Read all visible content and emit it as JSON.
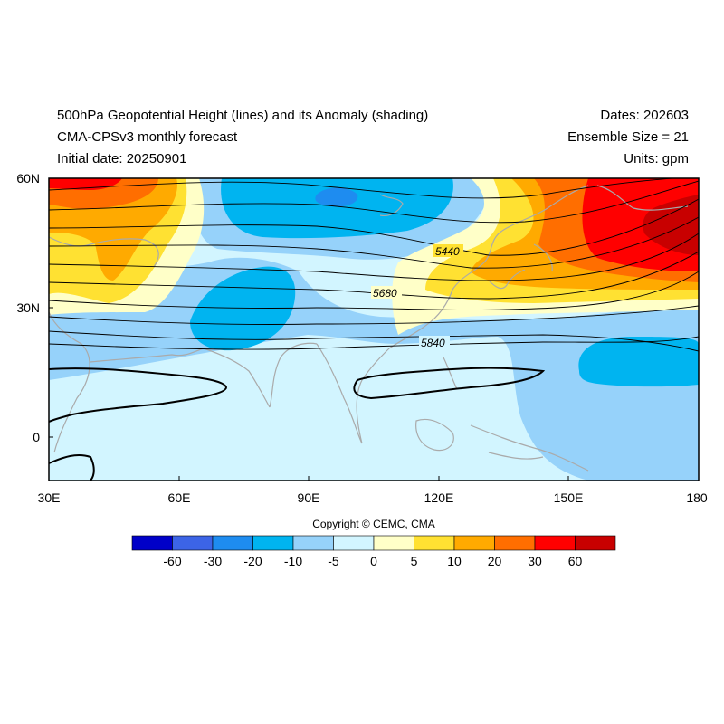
{
  "header": {
    "title": "500hPa Geopotential Height (lines) and its Anomaly (shading)",
    "model": "CMA-CPSv3 monthly forecast",
    "initial_date": "Initial date: 20250901",
    "dates": "Dates: 202603",
    "ensemble": "Ensemble Size = 21",
    "units": "Units: gpm"
  },
  "axes": {
    "lat_ticks": [
      "60N",
      "30N",
      "0"
    ],
    "lon_ticks": [
      "30E",
      "60E",
      "90E",
      "120E",
      "150E",
      "180"
    ]
  },
  "contour_labels": [
    "5440",
    "5680",
    "5840"
  ],
  "colorbar": {
    "colors": [
      "#0000c8",
      "#3c64e6",
      "#1e8cf0",
      "#00b4f0",
      "#96d2fa",
      "#d2f5ff",
      "#ffffc8",
      "#ffe132",
      "#ffaa00",
      "#ff6e00",
      "#ff0000",
      "#c80000"
    ],
    "labels": [
      "-60",
      "-30",
      "-20",
      "-10",
      "-5",
      "0",
      "5",
      "10",
      "20",
      "30",
      "60"
    ]
  },
  "copyright": "Copyright © CEMC, CMA"
}
